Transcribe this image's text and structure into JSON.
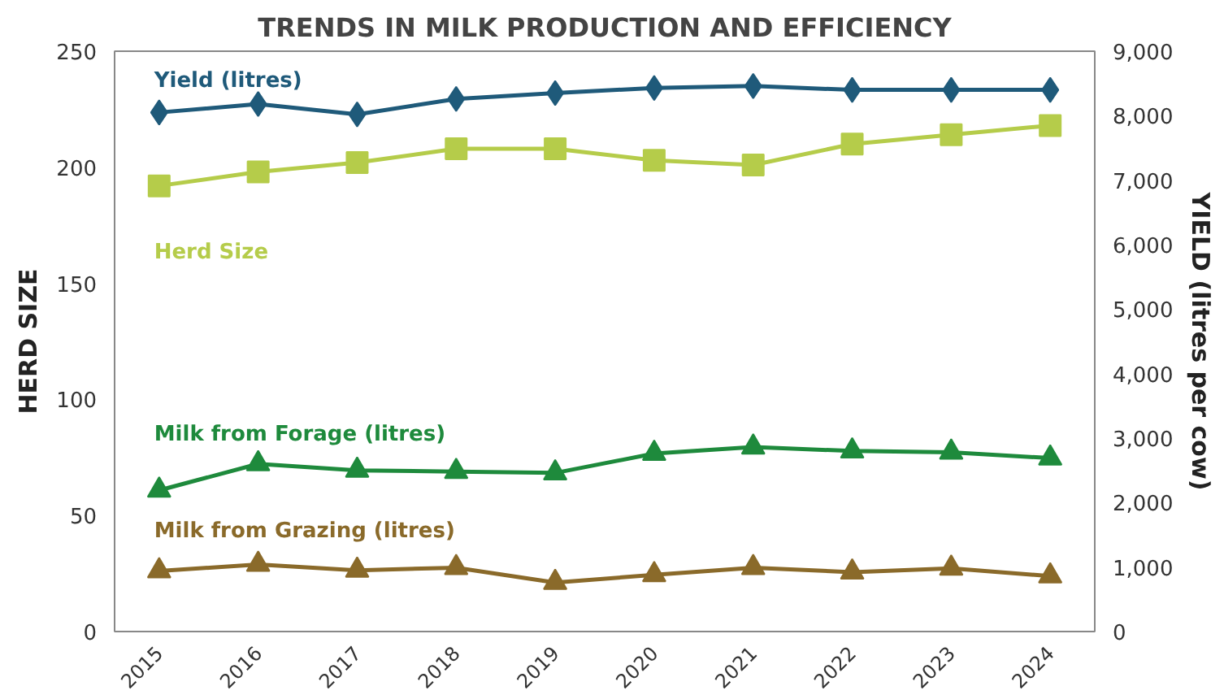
{
  "chart_data": {
    "type": "line",
    "title": "TRENDS IN MILK PRODUCTION AND EFFICIENCY",
    "ylabel": "HERD SIZE",
    "y2label": "YIELD (litres per cow)",
    "categories": [
      "2015",
      "2016",
      "2017",
      "2018",
      "2019",
      "2020",
      "2021",
      "2022",
      "2023",
      "2024"
    ],
    "series": [
      {
        "name": "Yield (litres)",
        "color": "#1f5a7a",
        "axis": "y2",
        "marker": "diamond",
        "values": [
          8050,
          8180,
          8020,
          8260,
          8350,
          8430,
          8460,
          8400,
          8400,
          8400
        ]
      },
      {
        "name": "Herd Size",
        "color": "#b5cc4a",
        "axis": "y",
        "marker": "square",
        "values": [
          192,
          198,
          202,
          208,
          208,
          203,
          201,
          210,
          214,
          218
        ]
      },
      {
        "name": "Milk from Forage (litres)",
        "color": "#1e8a3c",
        "axis": "y2",
        "marker": "triangle",
        "values": [
          2190,
          2600,
          2500,
          2480,
          2460,
          2760,
          2860,
          2800,
          2780,
          2690
        ]
      },
      {
        "name": "Milk from Grazing (litres)",
        "color": "#8a6a2a",
        "axis": "y2",
        "marker": "triangle",
        "values": [
          940,
          1040,
          950,
          990,
          760,
          880,
          990,
          920,
          980,
          860
        ]
      }
    ],
    "ylim": [
      0,
      250
    ],
    "yticks": [
      0,
      50,
      100,
      150,
      200,
      250
    ],
    "y2lim": [
      0,
      9000
    ],
    "y2ticks": [
      {
        "value": 0,
        "label": "0"
      },
      {
        "value": 1000,
        "label": "1,000"
      },
      {
        "value": 2000,
        "label": "2,000"
      },
      {
        "value": 3000,
        "label": "3,000"
      },
      {
        "value": 4000,
        "label": "4,000"
      },
      {
        "value": 5000,
        "label": "5,000"
      },
      {
        "value": 6000,
        "label": "6,000"
      },
      {
        "value": 7000,
        "label": "7,000"
      },
      {
        "value": 8000,
        "label": "8,000"
      },
      {
        "value": 9000,
        "label": "9,000"
      }
    ],
    "grid": false,
    "legend": false,
    "line_style": "solid"
  }
}
